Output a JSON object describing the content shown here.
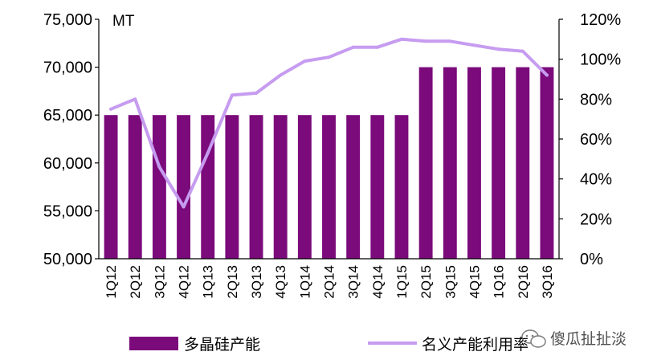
{
  "chart_data": {
    "type": "bar",
    "unit_label": "MT",
    "categories": [
      "1Q12",
      "2Q12",
      "3Q12",
      "4Q12",
      "1Q13",
      "2Q13",
      "3Q13",
      "4Q13",
      "1Q14",
      "2Q14",
      "3Q14",
      "4Q14",
      "1Q15",
      "2Q15",
      "3Q15",
      "4Q15",
      "1Q16",
      "2Q16",
      "3Q16"
    ],
    "series": [
      {
        "name": "多晶硅产能",
        "type": "bar",
        "axis": "left",
        "color": "#7b0a7b",
        "values": [
          65000,
          65000,
          65000,
          65000,
          65000,
          65000,
          65000,
          65000,
          65000,
          65000,
          65000,
          65000,
          65000,
          70000,
          70000,
          70000,
          70000,
          70000,
          70000
        ]
      },
      {
        "name": "名义产能利用率",
        "type": "line",
        "axis": "right",
        "color": "#c69cf0",
        "values": [
          0.75,
          0.8,
          0.46,
          0.26,
          0.53,
          0.82,
          0.83,
          0.92,
          0.99,
          1.01,
          1.06,
          1.06,
          1.1,
          1.09,
          1.09,
          1.07,
          1.05,
          1.04,
          0.92
        ]
      }
    ],
    "y_left": {
      "min": 50000,
      "max": 75000,
      "ticks": [
        "50,000",
        "55,000",
        "60,000",
        "65,000",
        "70,000",
        "75,000"
      ]
    },
    "y_right": {
      "min": 0,
      "max": 1.2,
      "ticks": [
        "0%",
        "20%",
        "40%",
        "60%",
        "80%",
        "100%",
        "120%"
      ]
    },
    "legend_position": "bottom",
    "grid": false
  },
  "watermark": {
    "text": "傻瓜扯扯淡",
    "icon": "wechat-icon"
  }
}
